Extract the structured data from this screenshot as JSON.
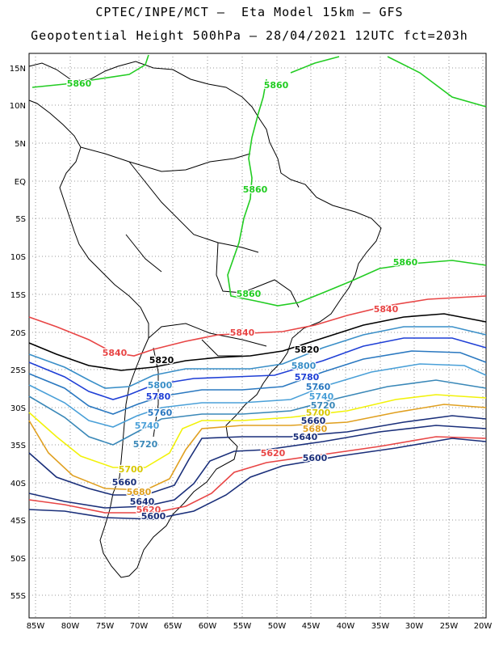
{
  "header": {
    "line1": "CPTEC/INPE/MCT –  Eta Model 15km – GFS",
    "line2": "Geopotential Height 500hPa – 28/04/2021 12UTC fct=203h"
  },
  "axes": {
    "lat_labels": [
      "15N",
      "10N",
      "5N",
      "EQ",
      "5S",
      "10S",
      "15S",
      "20S",
      "25S",
      "30S",
      "35S",
      "40S",
      "45S",
      "50S",
      "55S"
    ],
    "lon_labels": [
      "85W",
      "80W",
      "75W",
      "70W",
      "65W",
      "60W",
      "55W",
      "50W",
      "45W",
      "40W",
      "35W",
      "30W",
      "25W",
      "20W"
    ]
  },
  "contours": [
    {
      "value": "5860",
      "color": "#22cc22"
    },
    {
      "value": "5840",
      "color": "#e84545"
    },
    {
      "value": "5820",
      "color": "#000000"
    },
    {
      "value": "5800",
      "color": "#3a8fc8"
    },
    {
      "value": "5780",
      "color": "#1f3fd6"
    },
    {
      "value": "5760",
      "color": "#2a78c0"
    },
    {
      "value": "5740",
      "color": "#4aa0d8"
    },
    {
      "value": "5720",
      "color": "#3a88b8"
    },
    {
      "value": "5700",
      "color": "#f2f20a"
    },
    {
      "value": "5680",
      "color": "#e0a020"
    },
    {
      "value": "5660",
      "color": "#1a2f7a"
    },
    {
      "value": "5640",
      "color": "#1a2f7a"
    },
    {
      "value": "5620",
      "color": "#e84545"
    },
    {
      "value": "5600",
      "color": "#1a2f7a"
    }
  ],
  "contour_labels": [
    {
      "text": "5860",
      "color": "#22cc22"
    },
    {
      "text": "5860",
      "color": "#22cc22"
    },
    {
      "text": "5860",
      "color": "#22cc22"
    },
    {
      "text": "5860",
      "color": "#22cc22"
    },
    {
      "text": "5860",
      "color": "#22cc22"
    },
    {
      "text": "5840",
      "color": "#e84545"
    },
    {
      "text": "5840",
      "color": "#e84545"
    },
    {
      "text": "5840",
      "color": "#e84545"
    },
    {
      "text": "5820",
      "color": "#000000"
    },
    {
      "text": "5820",
      "color": "#000000"
    },
    {
      "text": "5800",
      "color": "#3a8fc8"
    },
    {
      "text": "5800",
      "color": "#3a8fc8"
    },
    {
      "text": "5780",
      "color": "#1f3fd6"
    },
    {
      "text": "5780",
      "color": "#1f3fd6"
    },
    {
      "text": "5760",
      "color": "#2a78c0"
    },
    {
      "text": "5760",
      "color": "#2a78c0"
    },
    {
      "text": "5740",
      "color": "#4aa0d8"
    },
    {
      "text": "5740",
      "color": "#4aa0d8"
    },
    {
      "text": "5720",
      "color": "#3a88b8"
    },
    {
      "text": "5720",
      "color": "#3a88b8"
    },
    {
      "text": "5700",
      "color": "#d8c800"
    },
    {
      "text": "5700",
      "color": "#d8c800"
    },
    {
      "text": "5680",
      "color": "#e0a020"
    },
    {
      "text": "5680",
      "color": "#e0a020"
    },
    {
      "text": "5660",
      "color": "#1a2f7a"
    },
    {
      "text": "5660",
      "color": "#1a2f7a"
    },
    {
      "text": "5640",
      "color": "#1a2f7a"
    },
    {
      "text": "5640",
      "color": "#1a2f7a"
    },
    {
      "text": "5620",
      "color": "#e84545"
    },
    {
      "text": "5620",
      "color": "#e84545"
    },
    {
      "text": "5600",
      "color": "#1a2f7a"
    },
    {
      "text": "5600",
      "color": "#1a2f7a"
    }
  ]
}
